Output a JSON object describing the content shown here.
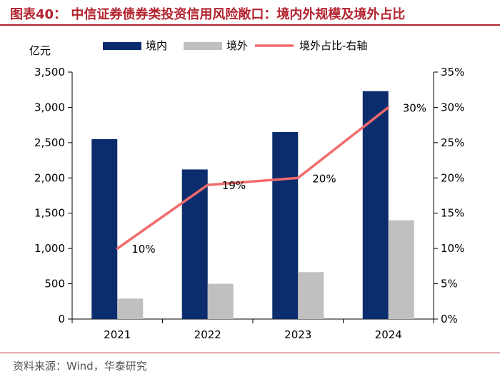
{
  "title": "图表40：  中信证券债券类投资信用风险敞口：境内外规模及境外占比",
  "source": "资料来源：Wind，华泰研究",
  "chart_data": {
    "type": "bar",
    "categories": [
      "2021",
      "2022",
      "2023",
      "2024"
    ],
    "series": [
      {
        "name": "境内",
        "kind": "bar",
        "axis": "left",
        "color": "#0b2d6e",
        "values": [
          2550,
          2120,
          2650,
          3230
        ]
      },
      {
        "name": "境外",
        "kind": "bar",
        "axis": "left",
        "color": "#c0c0c0",
        "values": [
          290,
          500,
          665,
          1400
        ]
      },
      {
        "name": "境外占比-右轴",
        "kind": "line",
        "axis": "right",
        "color": "#f26b6b",
        "values": [
          10,
          19,
          20,
          30
        ],
        "labels": [
          "10%",
          "19%",
          "20%",
          "30%"
        ]
      }
    ],
    "left_axis": {
      "unit": "亿元",
      "ylim": [
        0,
        3500
      ],
      "ticks": [
        0,
        500,
        1000,
        1500,
        2000,
        2500,
        3000,
        3500
      ],
      "tick_labels": [
        "0",
        "500",
        "1,000",
        "1,500",
        "2,000",
        "2,500",
        "3,000",
        "3,500"
      ]
    },
    "right_axis": {
      "ylim": [
        0,
        35
      ],
      "ticks": [
        0,
        5,
        10,
        15,
        20,
        25,
        30,
        35
      ],
      "tick_labels": [
        "0%",
        "5%",
        "10%",
        "15%",
        "20%",
        "25%",
        "30%",
        "35%"
      ]
    },
    "legend_position": "top"
  }
}
